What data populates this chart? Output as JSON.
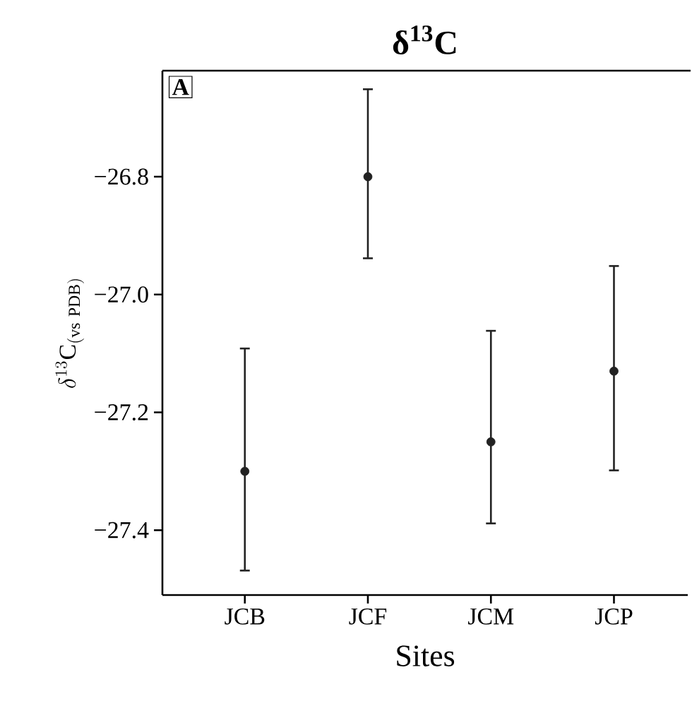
{
  "chart_data": {
    "type": "scatter",
    "title": "**δ$^{13}$C**",
    "xlabel": "Sites",
    "ylabel": "\\delta^{13}\\mathrm{C}_{\\mathrm{(vs\\ PDB)}}",
    "annotations": [
      "**A**"
    ],
    "categories": [
      "JCB",
      "JCF",
      "JCM",
      "JCP"
    ],
    "series": [
      {
        "color": "#222222",
        "values": [
          -27.3,
          -26.8,
          -27.25,
          -27.13
        ],
        "errors": [
          [
            -27.47,
            -27.09
          ],
          [
            -26.94,
            -26.65
          ],
          [
            -27.39,
            -27.06
          ],
          [
            -27.3,
            -26.95
          ]
        ]
      }
    ],
    "ylim": [
      -27.51,
      -26.62
    ],
    "yticks": [
      {
        "value": -27.4,
        "label": "−27.4"
      },
      {
        "value": -27.2,
        "label": "−27.2"
      },
      {
        "value": -27.0,
        "label": "−27.0"
      },
      {
        "value": -26.8,
        "label": "−26.8"
      }
    ]
  }
}
